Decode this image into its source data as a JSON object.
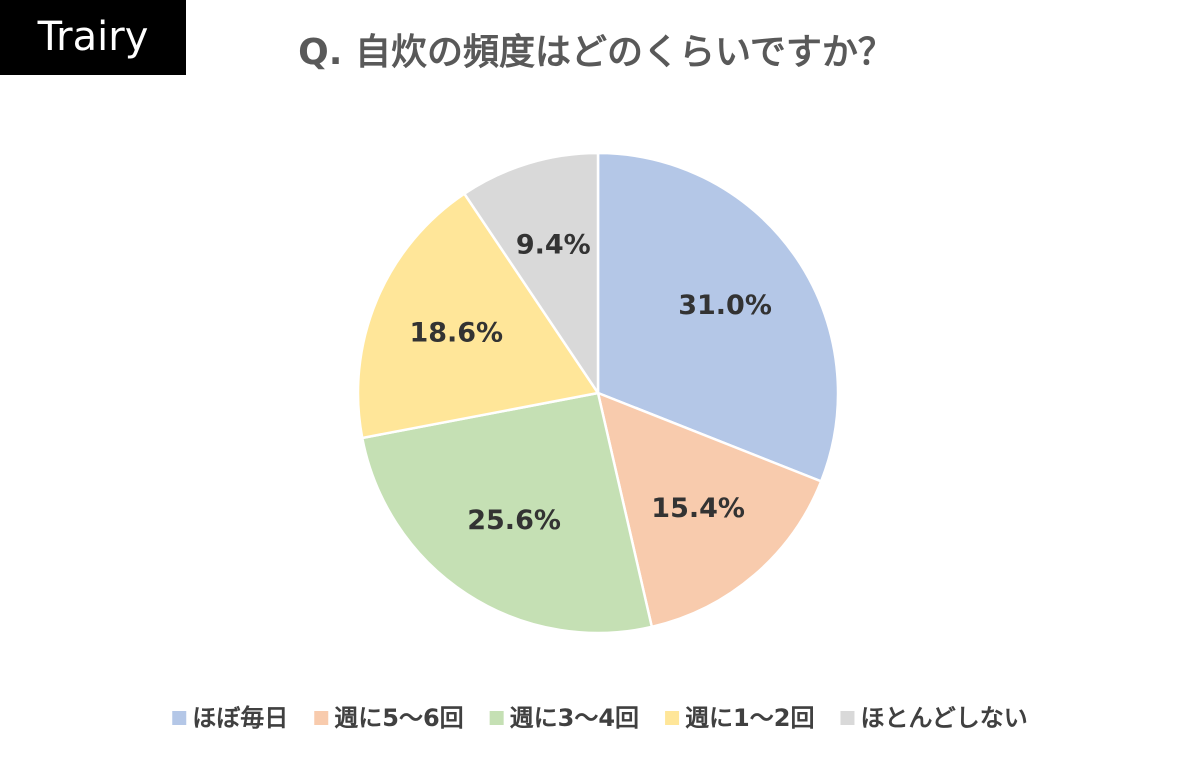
{
  "brand": "Trairy",
  "chart_data": {
    "type": "pie",
    "title": "Q. 自炊の頻度はどのくらいですか？",
    "categories": [
      "ほぼ毎日",
      "週に5〜6回",
      "週に3〜4回",
      "週に1〜2回",
      "ほとんどしない"
    ],
    "values": [
      31.0,
      15.4,
      25.6,
      18.6,
      9.4
    ],
    "value_labels": [
      "31.0%",
      "15.4%",
      "25.6%",
      "18.6%",
      "9.4%"
    ],
    "colors": [
      "#b4c7e7",
      "#f8cbad",
      "#c5e0b4",
      "#ffe699",
      "#d9d9d9"
    ],
    "legend": "bottom"
  }
}
